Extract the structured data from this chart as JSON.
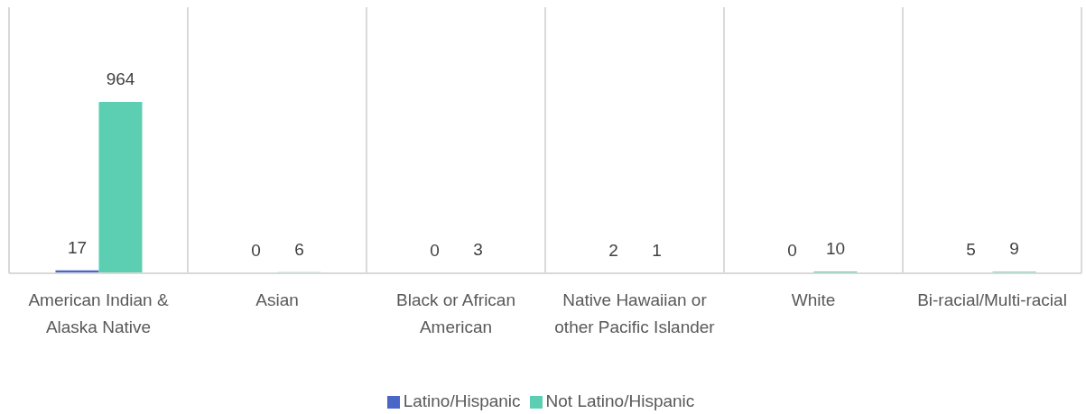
{
  "chart_data": {
    "type": "bar",
    "categories": [
      "American Indian & Alaska Native",
      "Asian",
      "Black or African American",
      "Native Hawaiian or other Pacific Islander",
      "White",
      "Bi-racial/Multi-racial"
    ],
    "series": [
      {
        "name": "Latino/Hispanic",
        "color": "#4a66c8",
        "values": [
          17,
          0,
          0,
          2,
          0,
          5
        ]
      },
      {
        "name": "Not Latino/Hispanic",
        "color": "#5ccfb2",
        "values": [
          964,
          6,
          3,
          1,
          10,
          9
        ]
      }
    ],
    "data_labels": true,
    "grid": "x",
    "legend": "bottom"
  }
}
